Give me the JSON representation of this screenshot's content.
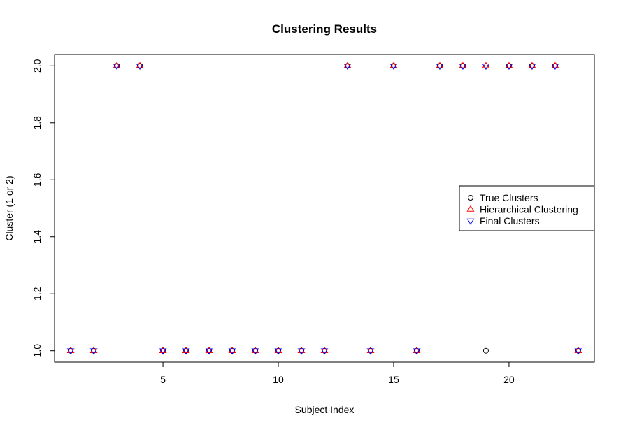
{
  "chart_data": {
    "type": "scatter",
    "title": "Clustering Results",
    "xlabel": "Subject Index",
    "ylabel": "Cluster (1 or 2)",
    "xlim": [
      0.3,
      23.7
    ],
    "ylim": [
      0.96,
      2.04
    ],
    "x_ticks": [
      5,
      10,
      15,
      20
    ],
    "y_ticks": [
      1.0,
      1.2,
      1.4,
      1.6,
      1.8,
      2.0
    ],
    "y_tick_labels": [
      "1.0",
      "1.2",
      "1.4",
      "1.6",
      "1.8",
      "2.0"
    ],
    "grid": false,
    "legend_position": "right",
    "x": [
      1,
      2,
      3,
      4,
      5,
      6,
      7,
      8,
      9,
      10,
      11,
      12,
      13,
      14,
      15,
      16,
      17,
      18,
      19,
      20,
      21,
      22,
      23
    ],
    "series": [
      {
        "name": "True Clusters",
        "marker": "circle",
        "color": "#000000",
        "values": [
          1,
          1,
          2,
          2,
          1,
          1,
          1,
          1,
          1,
          1,
          1,
          1,
          2,
          1,
          2,
          1,
          2,
          2,
          1,
          2,
          2,
          2,
          1
        ]
      },
      {
        "name": "Hierarchical Clustering",
        "marker": "triangle-up",
        "color": "#ff0000",
        "values": [
          1,
          1,
          2,
          2,
          1,
          1,
          1,
          1,
          1,
          1,
          1,
          1,
          2,
          1,
          2,
          1,
          2,
          2,
          2,
          2,
          2,
          2,
          1
        ]
      },
      {
        "name": "Final Clusters",
        "marker": "triangle-down",
        "color": "#0000ff",
        "values": [
          1,
          1,
          2,
          2,
          1,
          1,
          1,
          1,
          1,
          1,
          1,
          1,
          2,
          1,
          2,
          1,
          2,
          2,
          2,
          2,
          2,
          2,
          1
        ]
      }
    ]
  }
}
